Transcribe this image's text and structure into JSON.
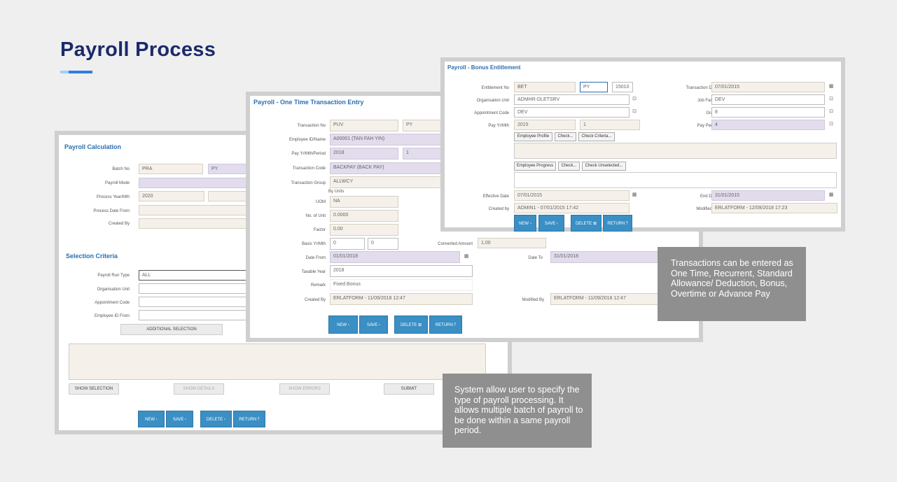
{
  "page": {
    "title": "Payroll Process"
  },
  "calc": {
    "title": "Payroll Calculation",
    "batch_no_label": "Batch No",
    "batch_no": "PRA",
    "batch_no_b": "PY",
    "payroll_mode_label": "Payroll Mode",
    "process_ym_label": "Process Year/Mth",
    "process_ym": "2020",
    "process_date_from_label": "Process Date From",
    "created_by_label": "Created By",
    "section": "Selection Criteria",
    "run_type_label": "Payroll Run Type",
    "run_type": "ALL",
    "org_unit_label": "Organisation Unit",
    "appointment_code_label": "Appointment Code",
    "employee_id_from_label": "Employee ID From",
    "additional_selection": "ADDITIONAL SELECTION",
    "show_selection": "SHOW SELECTION",
    "show_details": "SHOW DETAILS",
    "show_errors": "SHOW ERRORS",
    "submit": "SUBMIT",
    "new": "NEW ▫",
    "save": "SAVE ▫",
    "delete": "DELETE ▫",
    "return": "RETURN ⤒"
  },
  "one": {
    "title": "Payroll - One Time Transaction Entry",
    "transaction_no_label": "Transaction No",
    "transaction_no": "PUV",
    "transaction_no_b": "PY",
    "employee_label": "Employee ID/Name",
    "employee": "A00001 (TAN FAH YIN)",
    "pay_label": "Pay Yr/Mth/Period",
    "pay_year": "2018",
    "pay_period": "1",
    "trx_code_label": "Transaction Code",
    "trx_code": "BACKPAY (BACK PAY)",
    "trx_group_label": "Transaction Group",
    "trx_group": "ALLWCY",
    "by_units": "By Units",
    "uom_label": "UOM",
    "uom": "NA",
    "units_label": "No. of Unit",
    "units": "0.0000",
    "factor_label": "Factor",
    "factor": "0.00",
    "basis_label": "Basis Yr/Mth",
    "basis_a": "0",
    "basis_b": "0",
    "converted_label": "Converted Amount",
    "converted": "1.00",
    "date_from_label": "Date From",
    "date_from": "01/01/2018",
    "date_to_label": "Date To",
    "date_to": "31/01/2018",
    "taxable_year_label": "Taxable Year",
    "taxable_year": "2018",
    "remark_label": "Remark",
    "remark": "Fixed Bonus",
    "created_by_label": "Created By",
    "created_by": "ERLATFORM - 11/09/2018 12:47",
    "modified_by_label": "Modified By",
    "modified_by": "ERLATFORM - 11/09/2018 12:47",
    "new": "NEW ▫",
    "save": "SAVE ▫",
    "delete": "DELETE ⊠",
    "return": "RETURN ⤒"
  },
  "bonus": {
    "title": "Payroll - Bonus Entitlement",
    "entitlement_label": "Entitlement No",
    "entitlement_a": "BET",
    "entitlement_b": "PY",
    "entitlement_c": "15010",
    "trx_date_label": "Transaction Date",
    "trx_date": "07/01/2015",
    "org_unit_label": "Organisation Unit",
    "org_unit": "ADMHR-DLETSRV",
    "job_family_label": "Job Family",
    "job_family": "DEV",
    "appt_code_label": "Appointment Code",
    "appt_code": "DEV",
    "grade_label": "Grade",
    "grade": "8",
    "pay_label": "Pay Yr/Mth",
    "pay_year": "2015",
    "pay_month": "1",
    "pay_period_label": "Pay Period",
    "pay_period": "4",
    "employee_profile": "Employee Profile",
    "check1": "Check...",
    "check_criteria": "Check Criteria...",
    "employee_progress": "Employee Progress",
    "check2": "Check...",
    "check_unselected": "Check Unselected...",
    "effective_date_label": "Effective Date",
    "effective_date": "07/01/2015",
    "end_date_label": "End Date",
    "end_date": "31/01/2015",
    "created_by_label": "Created by",
    "created_by": "ADMIN1 - 07/01/2015 17:42",
    "modified_by_label": "Modified by",
    "modified_by": "ERLATFORM - 12/09/2018 17:23",
    "new": "NEW ▫",
    "save": "SAVE ▫",
    "delete": "DELETE ⊠",
    "return": "RETURN ⤒"
  },
  "captions": {
    "transactions": "Transactions can be entered as One Time, Recurrent, Standard Allowance/ Deduction, Bonus, Overtime or Advance Pay",
    "system": "System allow user to specify the type of payroll processing. It allows multiple batch of payroll to be done within a same payroll period."
  },
  "icons": {
    "calendar": "calendar-icon",
    "lookup": "lookup-icon"
  },
  "colors": {
    "title": "#1b2a6b",
    "accent": "#2f7de1",
    "button": "#3a8fc4",
    "caption": "#8f8f8f"
  }
}
